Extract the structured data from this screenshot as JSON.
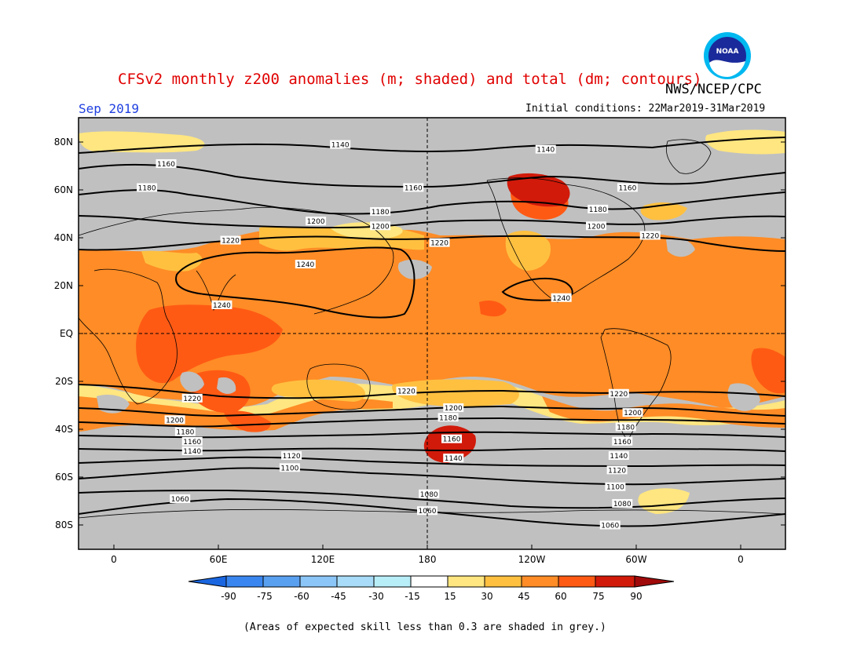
{
  "title": "CFSv2 monthly z200 anomalies (m; shaded) and total (dm; contours)",
  "agency": "NWS/NCEP/CPC",
  "logo_text": "NOAA",
  "month": "Sep 2019",
  "initial_conditions": "Initial conditions: 22Mar2019-31Mar2019",
  "footnote": "(Areas of expected skill less than 0.3 are shaded in grey.)",
  "colors": {
    "skill_grey": "#c0c0c0",
    "c15_30": "#ffe680",
    "c30_45": "#ffc040",
    "c45_60": "#ff8c26",
    "c60_75": "#ff5a14",
    "c75_90": "#d11a0a",
    "neg_90": "#1a66e0",
    "neg_75": "#3a86f0",
    "neg_60": "#5aa0f0",
    "neg_45": "#8cc6f8",
    "neg_30": "#b8eef8",
    "neutral": "#ffffff",
    "title_red": "#e00000",
    "month_blue": "#2040e0"
  },
  "chart_data": {
    "type": "map",
    "variable": "z200",
    "anomaly_units": "m",
    "contour_units": "dm",
    "lat_ticks": [
      "80N",
      "60N",
      "40N",
      "20N",
      "EQ",
      "20S",
      "40S",
      "60S",
      "80S"
    ],
    "lon_ticks": [
      "0",
      "60E",
      "120E",
      "180",
      "120W",
      "60W",
      "0"
    ],
    "colorbar": {
      "levels": [
        -90,
        -75,
        -60,
        -45,
        -30,
        -15,
        15,
        30,
        45,
        60,
        75,
        90
      ],
      "labels": [
        "-90",
        "-75",
        "-60",
        "-45",
        "-30",
        "-15",
        "15",
        "30",
        "45",
        "60",
        "75",
        "90"
      ]
    },
    "contour_levels": [
      1060,
      1080,
      1100,
      1120,
      1140,
      1160,
      1180,
      1200,
      1220,
      1240
    ],
    "contour_labels": [
      {
        "text": "1140",
        "lon": 130,
        "lat": 79
      },
      {
        "text": "1140",
        "lon": -112,
        "lat": 77
      },
      {
        "text": "1160",
        "lon": 30,
        "lat": 71
      },
      {
        "text": "1160",
        "lon": 172,
        "lat": 61
      },
      {
        "text": "1160",
        "lon": -65,
        "lat": 61
      },
      {
        "text": "1180",
        "lon": 19,
        "lat": 61
      },
      {
        "text": "1180",
        "lon": 153,
        "lat": 51
      },
      {
        "text": "1180",
        "lon": -82,
        "lat": 52
      },
      {
        "text": "1200",
        "lon": 116,
        "lat": 47
      },
      {
        "text": "1200",
        "lon": 153,
        "lat": 45
      },
      {
        "text": "1200",
        "lon": -83,
        "lat": 45
      },
      {
        "text": "1220",
        "lon": 67,
        "lat": 39
      },
      {
        "text": "1220",
        "lon": -173,
        "lat": 38
      },
      {
        "text": "1220",
        "lon": -52,
        "lat": 41
      },
      {
        "text": "1240",
        "lon": 110,
        "lat": 29
      },
      {
        "text": "1240",
        "lon": 62,
        "lat": 12
      },
      {
        "text": "1240",
        "lon": -103,
        "lat": 15
      },
      {
        "text": "1220",
        "lon": 45,
        "lat": -27
      },
      {
        "text": "1220",
        "lon": 168,
        "lat": -24
      },
      {
        "text": "1220",
        "lon": -70,
        "lat": -25
      },
      {
        "text": "1200",
        "lon": 35,
        "lat": -36
      },
      {
        "text": "1200",
        "lon": -165,
        "lat": -31
      },
      {
        "text": "1200",
        "lon": -62,
        "lat": -33
      },
      {
        "text": "1180",
        "lon": 41,
        "lat": -41
      },
      {
        "text": "1180",
        "lon": -168,
        "lat": -35
      },
      {
        "text": "1180",
        "lon": -66,
        "lat": -39
      },
      {
        "text": "1160",
        "lon": 45,
        "lat": -45
      },
      {
        "text": "1160",
        "lon": -166,
        "lat": -44
      },
      {
        "text": "1160",
        "lon": -68,
        "lat": -45
      },
      {
        "text": "1140",
        "lon": 45,
        "lat": -49
      },
      {
        "text": "1140",
        "lon": -165,
        "lat": -52
      },
      {
        "text": "1140",
        "lon": -70,
        "lat": -51
      },
      {
        "text": "1120",
        "lon": 102,
        "lat": -51
      },
      {
        "text": "1120",
        "lon": -71,
        "lat": -57
      },
      {
        "text": "1100",
        "lon": 101,
        "lat": -56
      },
      {
        "text": "1100",
        "lon": -72,
        "lat": -64
      },
      {
        "text": "1080",
        "lon": -179,
        "lat": -67
      },
      {
        "text": "1080",
        "lon": -68,
        "lat": -71
      },
      {
        "text": "1060",
        "lon": 38,
        "lat": -69
      },
      {
        "text": "1060",
        "lon": 180,
        "lat": -74
      },
      {
        "text": "1060",
        "lon": -75,
        "lat": -80
      }
    ]
  }
}
